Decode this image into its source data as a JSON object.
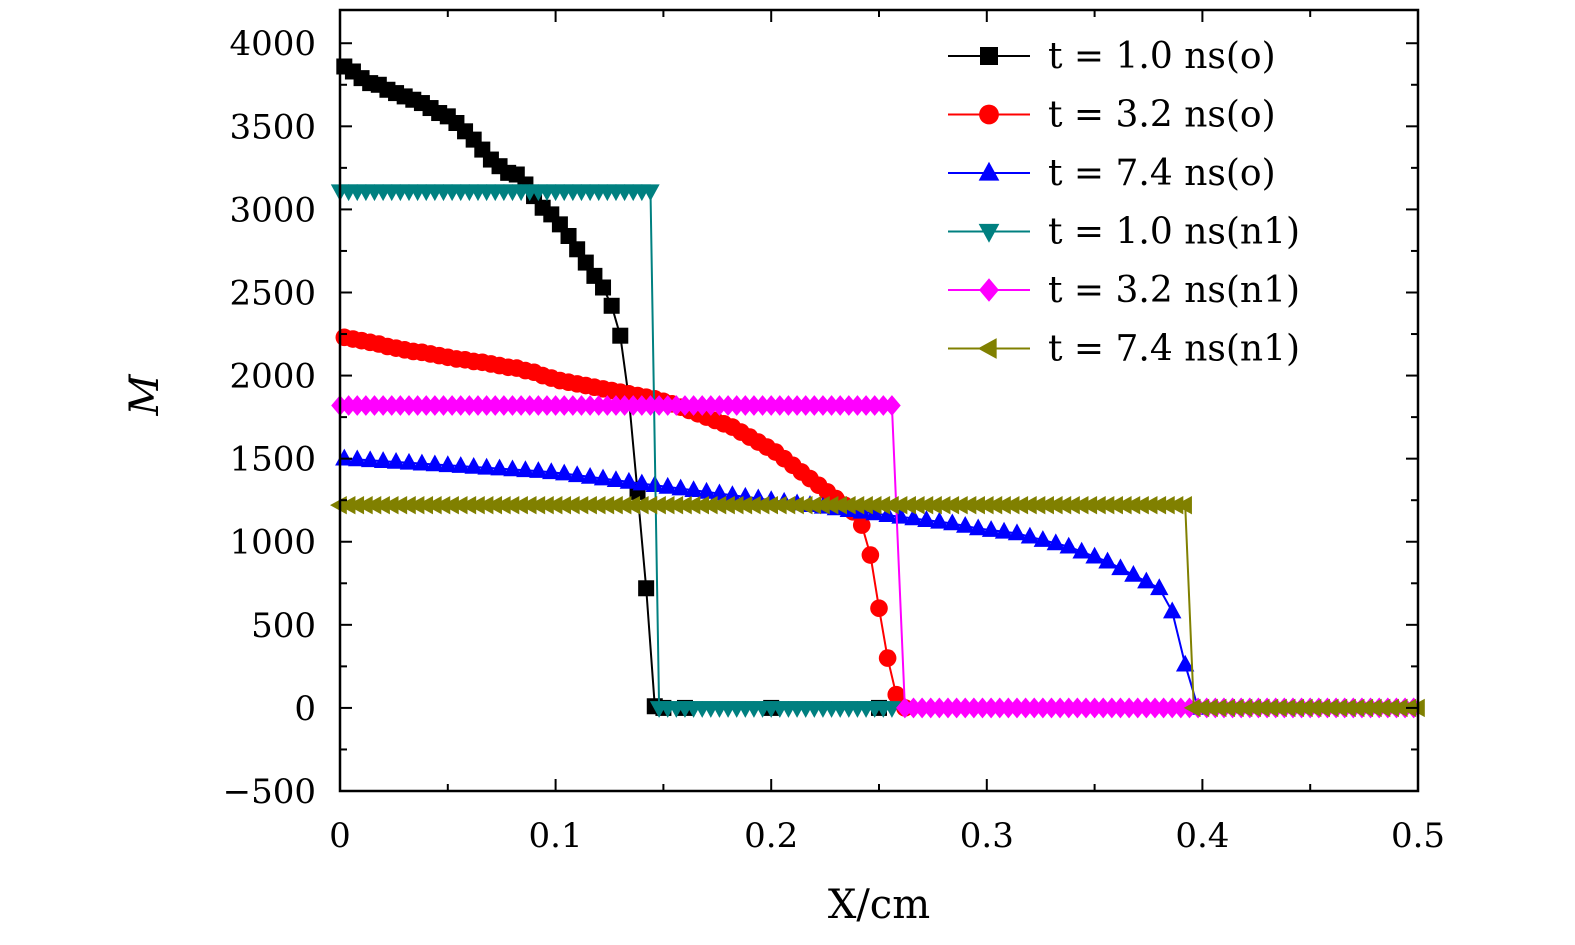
{
  "chart_data": {
    "type": "line",
    "xlabel": "X/cm",
    "ylabel": "M",
    "xlim": [
      0,
      0.5
    ],
    "ylim": [
      -500,
      4200
    ],
    "x_ticks": [
      "0",
      "0.1",
      "0.2",
      "0.3",
      "0.4",
      "0.5"
    ],
    "y_ticks": [
      "−500",
      "0",
      "500",
      "1000",
      "1500",
      "2000",
      "2500",
      "3000",
      "3500",
      "4000"
    ],
    "legend_position": "top-right",
    "grid": false,
    "series": [
      {
        "name": "t = 1.0 ns(o)",
        "color": "#000000",
        "marker": "square",
        "x": [
          0.002,
          0.006,
          0.01,
          0.014,
          0.018,
          0.022,
          0.026,
          0.03,
          0.034,
          0.038,
          0.042,
          0.046,
          0.05,
          0.054,
          0.058,
          0.062,
          0.066,
          0.07,
          0.074,
          0.078,
          0.082,
          0.086,
          0.09,
          0.094,
          0.098,
          0.102,
          0.106,
          0.11,
          0.114,
          0.118,
          0.122,
          0.126,
          0.13,
          0.134,
          0.138,
          0.142,
          0.146,
          0.15,
          0.16,
          0.2,
          0.25
        ],
        "y": [
          3860,
          3830,
          3790,
          3760,
          3750,
          3720,
          3700,
          3680,
          3660,
          3640,
          3610,
          3580,
          3560,
          3520,
          3470,
          3420,
          3360,
          3300,
          3260,
          3220,
          3210,
          3150,
          3080,
          3010,
          2970,
          2910,
          2840,
          2760,
          2680,
          2600,
          2530,
          2420,
          2240,
          1860,
          1300,
          720,
          10,
          0,
          0,
          0,
          0
        ]
      },
      {
        "name": "t = 3.2 ns(o)",
        "color": "#ff0000",
        "marker": "circle",
        "x": [
          0.002,
          0.006,
          0.01,
          0.014,
          0.018,
          0.022,
          0.026,
          0.03,
          0.034,
          0.038,
          0.042,
          0.046,
          0.05,
          0.054,
          0.058,
          0.062,
          0.066,
          0.07,
          0.074,
          0.078,
          0.082,
          0.086,
          0.09,
          0.094,
          0.098,
          0.102,
          0.106,
          0.11,
          0.114,
          0.118,
          0.122,
          0.126,
          0.13,
          0.134,
          0.138,
          0.142,
          0.146,
          0.15,
          0.154,
          0.158,
          0.162,
          0.166,
          0.17,
          0.174,
          0.178,
          0.182,
          0.186,
          0.19,
          0.194,
          0.198,
          0.202,
          0.206,
          0.21,
          0.214,
          0.218,
          0.222,
          0.226,
          0.23,
          0.234,
          0.238,
          0.242,
          0.246,
          0.25,
          0.254,
          0.258,
          0.262
        ],
        "y": [
          2230,
          2220,
          2210,
          2200,
          2190,
          2175,
          2165,
          2155,
          2145,
          2140,
          2130,
          2120,
          2110,
          2100,
          2095,
          2085,
          2080,
          2070,
          2060,
          2050,
          2045,
          2030,
          2020,
          2000,
          1985,
          1970,
          1960,
          1950,
          1940,
          1930,
          1920,
          1910,
          1900,
          1890,
          1880,
          1870,
          1860,
          1845,
          1830,
          1810,
          1790,
          1770,
          1750,
          1730,
          1710,
          1690,
          1660,
          1630,
          1600,
          1570,
          1540,
          1500,
          1460,
          1420,
          1380,
          1340,
          1300,
          1260,
          1220,
          1180,
          1100,
          920,
          600,
          300,
          80,
          0
        ]
      },
      {
        "name": "t = 7.4 ns(o)",
        "color": "#0000ff",
        "marker": "triangle-up",
        "x": [
          0.002,
          0.008,
          0.014,
          0.02,
          0.026,
          0.032,
          0.038,
          0.044,
          0.05,
          0.056,
          0.062,
          0.068,
          0.074,
          0.08,
          0.086,
          0.092,
          0.098,
          0.104,
          0.11,
          0.116,
          0.122,
          0.128,
          0.134,
          0.14,
          0.146,
          0.152,
          0.158,
          0.164,
          0.17,
          0.176,
          0.182,
          0.188,
          0.194,
          0.2,
          0.206,
          0.212,
          0.218,
          0.224,
          0.23,
          0.236,
          0.242,
          0.248,
          0.254,
          0.26,
          0.266,
          0.272,
          0.278,
          0.284,
          0.29,
          0.296,
          0.302,
          0.308,
          0.314,
          0.32,
          0.326,
          0.332,
          0.338,
          0.344,
          0.35,
          0.356,
          0.362,
          0.368,
          0.374,
          0.38,
          0.386,
          0.392,
          0.398
        ],
        "y": [
          1500,
          1495,
          1490,
          1485,
          1480,
          1475,
          1470,
          1465,
          1460,
          1455,
          1450,
          1445,
          1440,
          1435,
          1430,
          1425,
          1418,
          1410,
          1400,
          1390,
          1380,
          1370,
          1360,
          1350,
          1340,
          1330,
          1320,
          1310,
          1300,
          1290,
          1280,
          1270,
          1260,
          1250,
          1240,
          1230,
          1220,
          1210,
          1200,
          1190,
          1180,
          1170,
          1160,
          1150,
          1140,
          1130,
          1120,
          1110,
          1095,
          1080,
          1070,
          1060,
          1050,
          1030,
          1010,
          990,
          970,
          940,
          910,
          880,
          840,
          800,
          760,
          720,
          580,
          260,
          0
        ]
      },
      {
        "name": "t = 1.0 ns(n1)",
        "color": "#008080",
        "marker": "triangle-down",
        "x": [
          0.0,
          0.004,
          0.008,
          0.012,
          0.016,
          0.02,
          0.024,
          0.028,
          0.032,
          0.036,
          0.04,
          0.044,
          0.048,
          0.052,
          0.056,
          0.06,
          0.064,
          0.068,
          0.072,
          0.076,
          0.08,
          0.084,
          0.088,
          0.092,
          0.096,
          0.1,
          0.104,
          0.108,
          0.112,
          0.116,
          0.12,
          0.124,
          0.128,
          0.132,
          0.136,
          0.14,
          0.144,
          0.148,
          0.152,
          0.156,
          0.16,
          0.164,
          0.168,
          0.172,
          0.176,
          0.18,
          0.184,
          0.188,
          0.192,
          0.196,
          0.2,
          0.204,
          0.208,
          0.212,
          0.216,
          0.22,
          0.224,
          0.228,
          0.232,
          0.236,
          0.24,
          0.244,
          0.248,
          0.252,
          0.256
        ],
        "y": [
          3110,
          3110,
          3110,
          3110,
          3110,
          3110,
          3110,
          3110,
          3110,
          3110,
          3110,
          3110,
          3110,
          3110,
          3110,
          3110,
          3110,
          3110,
          3110,
          3110,
          3110,
          3110,
          3110,
          3110,
          3110,
          3110,
          3110,
          3110,
          3110,
          3110,
          3110,
          3110,
          3110,
          3110,
          3110,
          3110,
          3110,
          0,
          0,
          0,
          0,
          0,
          0,
          0,
          0,
          0,
          0,
          0,
          0,
          0,
          0,
          0,
          0,
          0,
          0,
          0,
          0,
          0,
          0,
          0,
          0,
          0,
          0,
          0,
          0
        ]
      },
      {
        "name": "t = 3.2 ns(n1)",
        "color": "#ff00ff",
        "marker": "diamond",
        "x": [
          0.0,
          0.004,
          0.008,
          0.012,
          0.016,
          0.02,
          0.024,
          0.028,
          0.032,
          0.036,
          0.04,
          0.044,
          0.048,
          0.052,
          0.056,
          0.06,
          0.064,
          0.068,
          0.072,
          0.076,
          0.08,
          0.084,
          0.088,
          0.092,
          0.096,
          0.1,
          0.104,
          0.108,
          0.112,
          0.116,
          0.12,
          0.124,
          0.128,
          0.132,
          0.136,
          0.14,
          0.144,
          0.148,
          0.152,
          0.156,
          0.16,
          0.164,
          0.168,
          0.172,
          0.176,
          0.18,
          0.184,
          0.188,
          0.192,
          0.196,
          0.2,
          0.204,
          0.208,
          0.212,
          0.216,
          0.22,
          0.224,
          0.228,
          0.232,
          0.236,
          0.24,
          0.244,
          0.248,
          0.252,
          0.256,
          0.262,
          0.266,
          0.27,
          0.274,
          0.278,
          0.282,
          0.286,
          0.29,
          0.294,
          0.298,
          0.302,
          0.306,
          0.31,
          0.314,
          0.318,
          0.322,
          0.326,
          0.33,
          0.334,
          0.338,
          0.342,
          0.346,
          0.35,
          0.354,
          0.358,
          0.362,
          0.366,
          0.37,
          0.374,
          0.378,
          0.382,
          0.386,
          0.39,
          0.394,
          0.398,
          0.402,
          0.406,
          0.41,
          0.414,
          0.418,
          0.422,
          0.426,
          0.43,
          0.434,
          0.438,
          0.442,
          0.446,
          0.45,
          0.454,
          0.458,
          0.462,
          0.466,
          0.47,
          0.474,
          0.478,
          0.482,
          0.486,
          0.49,
          0.494,
          0.498
        ],
        "y": [
          1820,
          1820,
          1820,
          1820,
          1820,
          1820,
          1820,
          1820,
          1820,
          1820,
          1820,
          1820,
          1820,
          1820,
          1820,
          1820,
          1820,
          1820,
          1820,
          1820,
          1820,
          1820,
          1820,
          1820,
          1820,
          1820,
          1820,
          1820,
          1820,
          1820,
          1820,
          1820,
          1820,
          1820,
          1820,
          1820,
          1820,
          1820,
          1820,
          1820,
          1820,
          1820,
          1820,
          1820,
          1820,
          1820,
          1820,
          1820,
          1820,
          1820,
          1820,
          1820,
          1820,
          1820,
          1820,
          1820,
          1820,
          1820,
          1820,
          1820,
          1820,
          1820,
          1820,
          1820,
          1820,
          0,
          0,
          0,
          0,
          0,
          0,
          0,
          0,
          0,
          0,
          0,
          0,
          0,
          0,
          0,
          0,
          0,
          0,
          0,
          0,
          0,
          0,
          0,
          0,
          0,
          0,
          0,
          0,
          0,
          0,
          0,
          0,
          0,
          0,
          0,
          0,
          0,
          0,
          0,
          0,
          0,
          0,
          0,
          0,
          0,
          0,
          0,
          0,
          0,
          0,
          0,
          0,
          0,
          0,
          0,
          0,
          0,
          0,
          0,
          0
        ]
      },
      {
        "name": "t = 7.4 ns(n1)",
        "color": "#808000",
        "marker": "triangle-left",
        "x": [
          0.0,
          0.004,
          0.008,
          0.012,
          0.016,
          0.02,
          0.024,
          0.028,
          0.032,
          0.036,
          0.04,
          0.044,
          0.048,
          0.052,
          0.056,
          0.06,
          0.064,
          0.068,
          0.072,
          0.076,
          0.08,
          0.084,
          0.088,
          0.092,
          0.096,
          0.1,
          0.104,
          0.108,
          0.112,
          0.116,
          0.12,
          0.124,
          0.128,
          0.132,
          0.136,
          0.14,
          0.144,
          0.148,
          0.152,
          0.156,
          0.16,
          0.164,
          0.168,
          0.172,
          0.176,
          0.18,
          0.184,
          0.188,
          0.192,
          0.196,
          0.2,
          0.204,
          0.208,
          0.212,
          0.216,
          0.22,
          0.224,
          0.228,
          0.232,
          0.236,
          0.24,
          0.244,
          0.248,
          0.252,
          0.256,
          0.26,
          0.264,
          0.268,
          0.272,
          0.276,
          0.28,
          0.284,
          0.288,
          0.292,
          0.296,
          0.3,
          0.304,
          0.308,
          0.312,
          0.316,
          0.32,
          0.324,
          0.328,
          0.332,
          0.336,
          0.34,
          0.344,
          0.348,
          0.352,
          0.356,
          0.36,
          0.364,
          0.368,
          0.372,
          0.376,
          0.38,
          0.384,
          0.388,
          0.392,
          0.396,
          0.4,
          0.404,
          0.408,
          0.412,
          0.416,
          0.42,
          0.424,
          0.428,
          0.432,
          0.436,
          0.44,
          0.444,
          0.448,
          0.452,
          0.456,
          0.46,
          0.464,
          0.468,
          0.472,
          0.476,
          0.48,
          0.484,
          0.488,
          0.492,
          0.496,
          0.5
        ],
        "y": [
          1220,
          1220,
          1220,
          1220,
          1220,
          1220,
          1220,
          1220,
          1220,
          1220,
          1220,
          1220,
          1220,
          1220,
          1220,
          1220,
          1220,
          1220,
          1220,
          1220,
          1220,
          1220,
          1220,
          1220,
          1220,
          1220,
          1220,
          1220,
          1220,
          1220,
          1220,
          1220,
          1220,
          1220,
          1220,
          1220,
          1220,
          1220,
          1220,
          1220,
          1220,
          1220,
          1220,
          1220,
          1220,
          1220,
          1220,
          1220,
          1220,
          1220,
          1220,
          1220,
          1220,
          1220,
          1220,
          1220,
          1220,
          1220,
          1220,
          1220,
          1220,
          1220,
          1220,
          1220,
          1220,
          1220,
          1220,
          1220,
          1220,
          1220,
          1220,
          1220,
          1220,
          1220,
          1220,
          1220,
          1220,
          1220,
          1220,
          1220,
          1220,
          1220,
          1220,
          1220,
          1220,
          1220,
          1220,
          1220,
          1220,
          1220,
          1220,
          1220,
          1220,
          1220,
          1220,
          1220,
          1220,
          1220,
          1220,
          0,
          0,
          0,
          0,
          0,
          0,
          0,
          0,
          0,
          0,
          0,
          0,
          0,
          0,
          0,
          0,
          0,
          0,
          0,
          0,
          0,
          0,
          0,
          0,
          0,
          0,
          0
        ]
      }
    ]
  }
}
